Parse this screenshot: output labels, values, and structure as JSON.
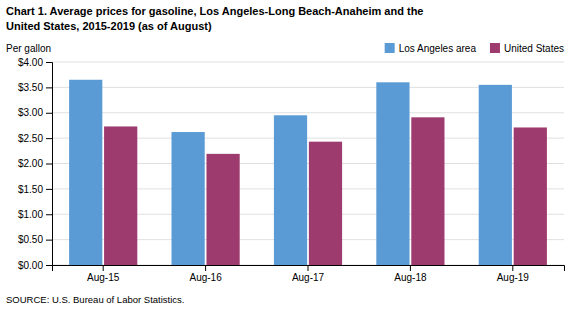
{
  "chart_data": {
    "type": "bar",
    "title": "Chart 1. Average prices for gasoline, Los Angeles-Long Beach-Anaheim and the",
    "subtitle": "United States, 2015-2019  (as of August)",
    "ylabel": "Per gallon",
    "source": "SOURCE: U.S. Bureau of Labor Statistics.",
    "categories": [
      "Aug-15",
      "Aug-16",
      "Aug-17",
      "Aug-18",
      "Aug-19"
    ],
    "series": [
      {
        "name": "Los Angeles area",
        "color": "#5B9BD5",
        "values": [
          3.65,
          2.62,
          2.95,
          3.6,
          3.55
        ]
      },
      {
        "name": "United States",
        "color": "#9E3B6E",
        "values": [
          2.73,
          2.19,
          2.43,
          2.91,
          2.71
        ]
      }
    ],
    "ylim": [
      0.0,
      4.0
    ],
    "yticks": [
      {
        "value": 0.0,
        "label": "$0.00"
      },
      {
        "value": 0.5,
        "label": "$0.50"
      },
      {
        "value": 1.0,
        "label": "$1.00"
      },
      {
        "value": 1.5,
        "label": "$1.50"
      },
      {
        "value": 2.0,
        "label": "$2.00"
      },
      {
        "value": 2.5,
        "label": "$2.50"
      },
      {
        "value": 3.0,
        "label": "$3.00"
      },
      {
        "value": 3.5,
        "label": "$3.50"
      },
      {
        "value": 4.0,
        "label": "$4.00"
      }
    ],
    "grid": true,
    "legend": "top-right"
  }
}
